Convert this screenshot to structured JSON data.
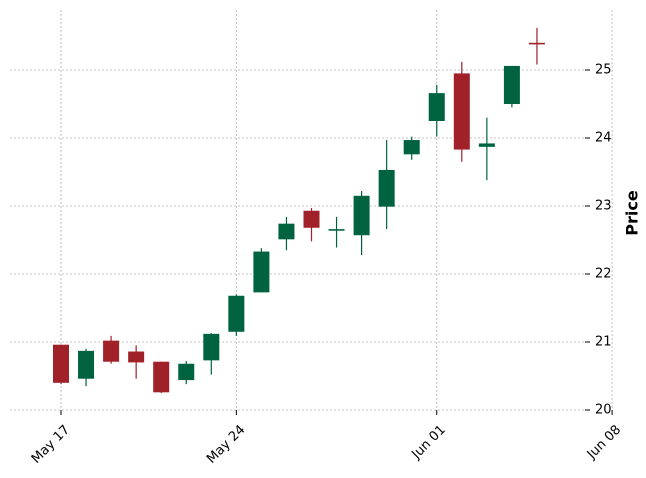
{
  "chart_data": {
    "type": "candlestick",
    "title": "",
    "xlabel": "",
    "ylabel": "Price",
    "ylim": [
      20,
      25.9
    ],
    "yticks": [
      20,
      21,
      22,
      23,
      24,
      25
    ],
    "xticks": [
      {
        "date": "2024-05-17",
        "label": "May 17"
      },
      {
        "date": "2024-05-24",
        "label": "May 24"
      },
      {
        "date": "2024-06-01",
        "label": "Jun 01"
      },
      {
        "date": "2024-06-08",
        "label": "Jun 08"
      },
      {
        "date": "2024-06-15",
        "label": ""
      }
    ],
    "grid": true,
    "colors": {
      "up": "#006340",
      "down": "#a02128",
      "grid": "#b0b0b0"
    },
    "candles": [
      {
        "date": "2024-05-17",
        "open": 20.96,
        "high": 20.96,
        "low": 20.38,
        "close": 20.4
      },
      {
        "date": "2024-05-18",
        "open": 20.46,
        "high": 20.9,
        "low": 20.35,
        "close": 20.87
      },
      {
        "date": "2024-05-19",
        "open": 21.02,
        "high": 21.09,
        "low": 20.68,
        "close": 20.71
      },
      {
        "date": "2024-05-20",
        "open": 20.86,
        "high": 20.95,
        "low": 20.46,
        "close": 20.7
      },
      {
        "date": "2024-05-21",
        "open": 20.71,
        "high": 20.71,
        "low": 20.25,
        "close": 20.26
      },
      {
        "date": "2024-05-22",
        "open": 20.44,
        "high": 20.72,
        "low": 20.38,
        "close": 20.68
      },
      {
        "date": "2024-05-23",
        "open": 20.73,
        "high": 21.13,
        "low": 20.52,
        "close": 21.12
      },
      {
        "date": "2024-05-24",
        "open": 21.15,
        "high": 21.7,
        "low": 21.09,
        "close": 21.68
      },
      {
        "date": "2024-05-25",
        "open": 21.73,
        "high": 22.38,
        "low": 21.73,
        "close": 22.33
      },
      {
        "date": "2024-05-26",
        "open": 22.51,
        "high": 22.84,
        "low": 22.35,
        "close": 22.74
      },
      {
        "date": "2024-05-27",
        "open": 22.93,
        "high": 22.97,
        "low": 22.48,
        "close": 22.68
      },
      {
        "date": "2024-05-28",
        "open": 22.64,
        "high": 22.84,
        "low": 22.39,
        "close": 22.66
      },
      {
        "date": "2024-05-29",
        "open": 22.57,
        "high": 23.22,
        "low": 22.28,
        "close": 23.15
      },
      {
        "date": "2024-05-30",
        "open": 22.99,
        "high": 23.97,
        "low": 22.66,
        "close": 23.53
      },
      {
        "date": "2024-05-31",
        "open": 23.76,
        "high": 24.02,
        "low": 23.68,
        "close": 23.97
      },
      {
        "date": "2024-06-01",
        "open": 24.25,
        "high": 24.78,
        "low": 24.02,
        "close": 24.66
      },
      {
        "date": "2024-06-02",
        "open": 24.95,
        "high": 25.12,
        "low": 23.65,
        "close": 23.83
      },
      {
        "date": "2024-06-03",
        "open": 23.87,
        "high": 24.3,
        "low": 23.38,
        "close": 23.92
      },
      {
        "date": "2024-06-04",
        "open": 24.5,
        "high": 25.06,
        "low": 24.45,
        "close": 25.06
      },
      {
        "date": "2024-06-05",
        "open": 25.4,
        "high": 25.62,
        "low": 25.08,
        "close": 25.38
      }
    ]
  }
}
